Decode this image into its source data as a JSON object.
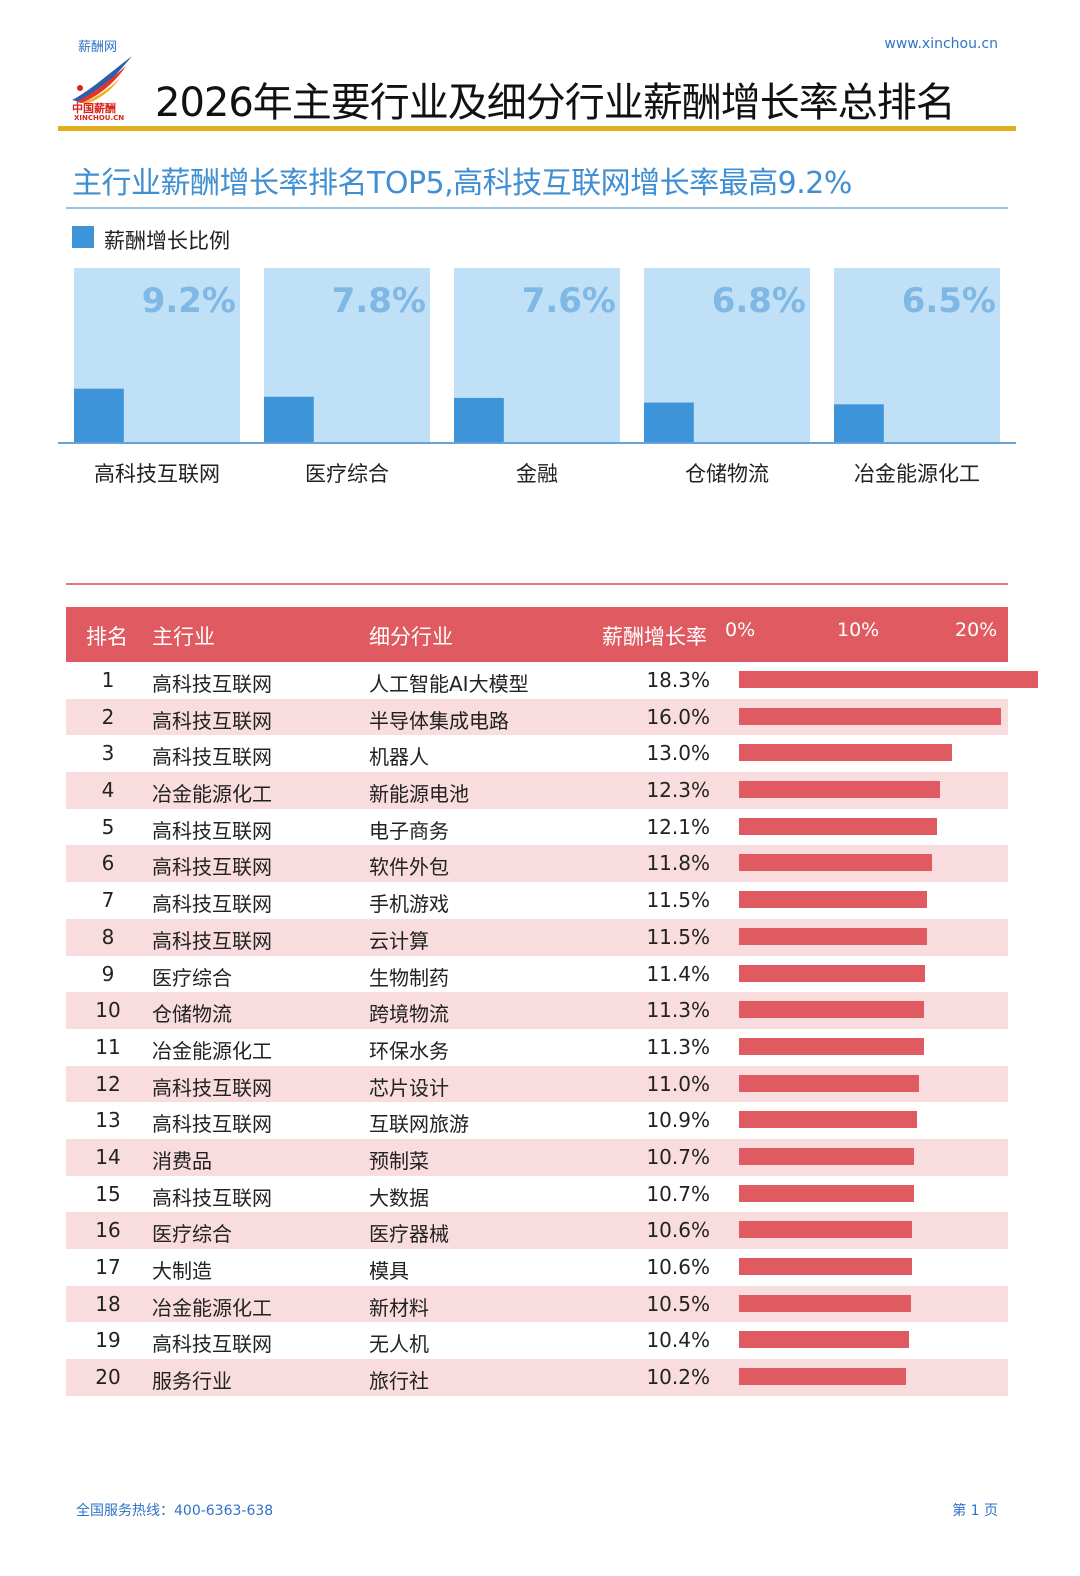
{
  "header": {
    "site_name": "薪酬网",
    "site_url": "www.xinchou.cn",
    "logo_text_cn": "中国薪酬",
    "logo_text_en": "XINCHOU.CN",
    "title": "2026年主要行业及细分行业薪酬增长率总排名"
  },
  "section": {
    "subtitle": "主行业薪酬增长率排名TOP5,高科技互联网增长率最高9.2%"
  },
  "colors": {
    "accent_blue": "#3d94d8",
    "light_blue": "#bfe0f6",
    "accent_red": "#e05a62",
    "row_pink": "#f9dcde",
    "gold_rule": "#e1ae1e"
  },
  "chart_data": [
    {
      "type": "bar",
      "title": "主行业薪酬增长率排名TOP5,高科技互联网增长率最高9.2%",
      "legend": [
        "薪酬增长比例"
      ],
      "categories": [
        "高科技互联网",
        "医疗综合",
        "金融",
        "仓储物流",
        "冶金能源化工"
      ],
      "values": [
        9.2,
        7.8,
        7.6,
        6.8,
        6.5
      ],
      "value_labels": [
        "9.2%",
        "7.8%",
        "7.6%",
        "6.8%",
        "6.5%"
      ],
      "unit": "%",
      "ylim": [
        0,
        30
      ]
    },
    {
      "type": "table",
      "columns": [
        "排名",
        "主行业",
        "细分行业",
        "薪酬增长率"
      ],
      "axis_ticks": [
        "0%",
        "10%",
        "20%"
      ],
      "xlim": [
        0,
        20
      ],
      "rows": [
        {
          "rank": "1",
          "main": "高科技互联网",
          "sub": "人工智能AI大模型",
          "rate": "18.3%",
          "value": 18.3
        },
        {
          "rank": "2",
          "main": "高科技互联网",
          "sub": "半导体集成电路",
          "rate": "16.0%",
          "value": 16.0
        },
        {
          "rank": "3",
          "main": "高科技互联网",
          "sub": "机器人",
          "rate": "13.0%",
          "value": 13.0
        },
        {
          "rank": "4",
          "main": "冶金能源化工",
          "sub": "新能源电池",
          "rate": "12.3%",
          "value": 12.3
        },
        {
          "rank": "5",
          "main": "高科技互联网",
          "sub": "电子商务",
          "rate": "12.1%",
          "value": 12.1
        },
        {
          "rank": "6",
          "main": "高科技互联网",
          "sub": "软件外包",
          "rate": "11.8%",
          "value": 11.8
        },
        {
          "rank": "7",
          "main": "高科技互联网",
          "sub": "手机游戏",
          "rate": "11.5%",
          "value": 11.5
        },
        {
          "rank": "8",
          "main": "高科技互联网",
          "sub": "云计算",
          "rate": "11.5%",
          "value": 11.5
        },
        {
          "rank": "9",
          "main": "医疗综合",
          "sub": "生物制药",
          "rate": "11.4%",
          "value": 11.4
        },
        {
          "rank": "10",
          "main": "仓储物流",
          "sub": "跨境物流",
          "rate": "11.3%",
          "value": 11.3
        },
        {
          "rank": "11",
          "main": "冶金能源化工",
          "sub": "环保水务",
          "rate": "11.3%",
          "value": 11.3
        },
        {
          "rank": "12",
          "main": "高科技互联网",
          "sub": "芯片设计",
          "rate": "11.0%",
          "value": 11.0
        },
        {
          "rank": "13",
          "main": "高科技互联网",
          "sub": "互联网旅游",
          "rate": "10.9%",
          "value": 10.9
        },
        {
          "rank": "14",
          "main": "消费品",
          "sub": "预制菜",
          "rate": "10.7%",
          "value": 10.7
        },
        {
          "rank": "15",
          "main": "高科技互联网",
          "sub": "大数据",
          "rate": "10.7%",
          "value": 10.7
        },
        {
          "rank": "16",
          "main": "医疗综合",
          "sub": "医疗器械",
          "rate": "10.6%",
          "value": 10.6
        },
        {
          "rank": "17",
          "main": "大制造",
          "sub": "模具",
          "rate": "10.6%",
          "value": 10.6
        },
        {
          "rank": "18",
          "main": "冶金能源化工",
          "sub": "新材料",
          "rate": "10.5%",
          "value": 10.5
        },
        {
          "rank": "19",
          "main": "高科技互联网",
          "sub": "无人机",
          "rate": "10.4%",
          "value": 10.4
        },
        {
          "rank": "20",
          "main": "服务行业",
          "sub": "旅行社",
          "rate": "10.2%",
          "value": 10.2
        }
      ]
    }
  ],
  "footer": {
    "hotline": "全国服务热线：400-6363-638",
    "page": "第 1 页"
  }
}
